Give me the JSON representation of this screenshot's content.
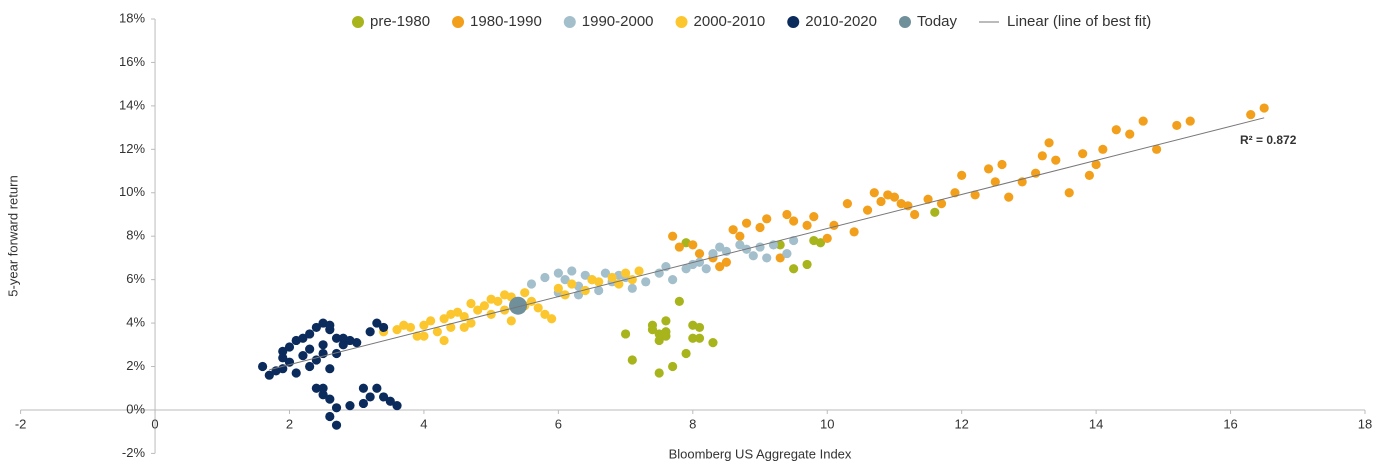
{
  "chart_data": {
    "type": "scatter",
    "x_label": "Bloomberg US Aggregate Index",
    "y_label": "5-year forward return",
    "annotation": "R² = 0.872",
    "xlim": [
      -2,
      18
    ],
    "xticks": [
      -2,
      0,
      2,
      4,
      6,
      8,
      10,
      12,
      14,
      16,
      18
    ],
    "ylim": [
      -2,
      18
    ],
    "yticks": [
      {
        "value": -2,
        "label": "-2%"
      },
      {
        "value": 0,
        "label": "0%"
      },
      {
        "value": 2,
        "label": "2%"
      },
      {
        "value": 4,
        "label": "4%"
      },
      {
        "value": 6,
        "label": "6%"
      },
      {
        "value": 8,
        "label": "8%"
      },
      {
        "value": 10,
        "label": "10%"
      },
      {
        "value": 12,
        "label": "12%"
      },
      {
        "value": 14,
        "label": "14%"
      },
      {
        "value": 16,
        "label": "16%"
      },
      {
        "value": 18,
        "label": "18%"
      }
    ],
    "series": [
      {
        "name": "pre-1980",
        "color": "#a8b41c",
        "x": [
          7.0,
          7.1,
          7.4,
          7.5,
          7.5,
          7.6,
          7.6,
          7.5,
          7.7,
          7.8,
          7.9,
          8.0,
          8.0,
          8.1,
          8.1,
          8.3,
          7.4,
          7.6,
          9.3,
          9.5,
          9.7,
          9.8,
          9.9,
          11.6,
          7.9
        ],
        "values": [
          3.5,
          2.3,
          3.9,
          3.5,
          3.2,
          4.1,
          3.6,
          1.7,
          2.0,
          5.0,
          2.6,
          3.9,
          3.3,
          3.8,
          3.3,
          3.1,
          3.7,
          3.4,
          7.6,
          6.5,
          6.7,
          7.8,
          7.7,
          9.1,
          7.7
        ]
      },
      {
        "name": "1980-1990",
        "color": "#f29f1c",
        "x": [
          7.7,
          7.8,
          8.0,
          8.1,
          8.3,
          8.4,
          8.5,
          8.6,
          8.7,
          8.8,
          9.0,
          9.1,
          9.3,
          9.4,
          9.5,
          9.7,
          9.8,
          10.0,
          10.1,
          10.3,
          10.4,
          10.6,
          10.7,
          10.8,
          11.0,
          11.2,
          11.3,
          11.5,
          11.7,
          11.9,
          12.0,
          12.2,
          12.4,
          12.5,
          12.7,
          12.9,
          13.1,
          13.2,
          13.4,
          13.6,
          13.8,
          14.0,
          14.1,
          14.3,
          14.5,
          14.7,
          14.9,
          15.2,
          15.4,
          16.3,
          16.5,
          13.3,
          13.9,
          12.6,
          11.1,
          10.9
        ],
        "values": [
          8.0,
          7.5,
          7.6,
          7.2,
          7.0,
          6.6,
          6.8,
          8.3,
          8.0,
          8.6,
          8.4,
          8.8,
          7.0,
          9.0,
          8.7,
          8.5,
          8.9,
          7.9,
          8.5,
          9.5,
          8.2,
          9.2,
          10.0,
          9.6,
          9.8,
          9.4,
          9.0,
          9.7,
          9.5,
          10.0,
          10.8,
          9.9,
          11.1,
          10.5,
          9.8,
          10.5,
          10.9,
          11.7,
          11.5,
          10.0,
          11.8,
          11.3,
          12.0,
          12.9,
          12.7,
          13.3,
          12.0,
          13.1,
          13.3,
          13.6,
          13.9,
          12.3,
          10.8,
          11.3,
          9.5,
          9.9
        ]
      },
      {
        "name": "1990-2000",
        "color": "#a3bfcc",
        "x": [
          5.6,
          5.8,
          6.0,
          6.1,
          6.2,
          6.3,
          6.4,
          6.5,
          6.6,
          6.7,
          6.8,
          6.9,
          7.1,
          7.3,
          7.5,
          7.7,
          7.9,
          8.1,
          8.2,
          8.3,
          8.4,
          8.5,
          8.7,
          8.9,
          9.0,
          9.2,
          9.4,
          9.5,
          6.0,
          6.3,
          7.6,
          8.0,
          8.8,
          9.1,
          7.0
        ],
        "values": [
          5.8,
          6.1,
          6.3,
          6.0,
          6.4,
          5.7,
          6.2,
          6.0,
          5.5,
          6.3,
          5.9,
          6.2,
          5.6,
          5.9,
          6.3,
          6.0,
          6.5,
          6.8,
          6.5,
          7.2,
          7.5,
          7.3,
          7.6,
          7.1,
          7.5,
          7.6,
          7.2,
          7.8,
          5.4,
          5.3,
          6.6,
          6.7,
          7.4,
          7.0,
          6.1
        ]
      },
      {
        "name": "2000-2010",
        "color": "#fcc72e",
        "x": [
          3.4,
          3.6,
          3.8,
          3.9,
          4.0,
          4.1,
          4.2,
          4.3,
          4.4,
          4.5,
          4.6,
          4.7,
          4.8,
          4.9,
          5.0,
          5.1,
          5.2,
          5.3,
          5.4,
          5.5,
          5.6,
          5.7,
          5.8,
          6.0,
          6.1,
          6.2,
          6.4,
          6.5,
          6.6,
          6.8,
          6.9,
          7.0,
          7.1,
          7.2,
          4.0,
          4.3,
          4.6,
          5.3,
          5.9,
          4.7,
          5.2,
          5.5,
          3.7,
          4.4,
          5.0
        ],
        "values": [
          3.6,
          3.7,
          3.8,
          3.4,
          3.9,
          4.1,
          3.6,
          4.2,
          3.8,
          4.5,
          4.3,
          4.0,
          4.6,
          4.8,
          4.4,
          5.0,
          4.6,
          5.2,
          4.9,
          5.4,
          5.0,
          4.7,
          4.4,
          5.6,
          5.3,
          5.8,
          5.5,
          6.0,
          5.9,
          6.1,
          5.8,
          6.3,
          6.0,
          6.4,
          3.4,
          3.2,
          3.8,
          4.1,
          4.2,
          4.9,
          5.3,
          4.8,
          3.9,
          4.4,
          5.1
        ]
      },
      {
        "name": "2010-2020",
        "color": "#0b2b5c",
        "x": [
          1.6,
          1.7,
          1.8,
          1.9,
          1.9,
          2.0,
          2.0,
          2.1,
          2.1,
          2.2,
          2.2,
          2.3,
          2.3,
          2.3,
          2.4,
          2.4,
          2.5,
          2.5,
          2.5,
          2.6,
          2.6,
          2.7,
          2.7,
          2.8,
          2.9,
          3.0,
          3.2,
          3.3,
          3.4,
          2.4,
          2.5,
          2.5,
          2.6,
          2.6,
          2.7,
          2.7,
          2.9,
          3.1,
          3.1,
          3.2,
          3.3,
          3.4,
          3.5,
          3.6,
          2.8,
          1.9,
          2.6
        ],
        "values": [
          2.0,
          1.6,
          1.8,
          2.7,
          1.9,
          2.9,
          2.2,
          3.2,
          1.7,
          2.5,
          3.3,
          2.0,
          2.8,
          3.5,
          3.8,
          2.3,
          4.0,
          3.0,
          2.6,
          3.7,
          1.9,
          3.3,
          2.6,
          3.0,
          3.2,
          3.1,
          3.6,
          4.0,
          3.8,
          1.0,
          0.7,
          1.0,
          0.5,
          -0.3,
          -0.7,
          0.1,
          0.2,
          0.3,
          1.0,
          0.6,
          1.0,
          0.6,
          0.4,
          0.2,
          3.3,
          2.4,
          3.9
        ]
      },
      {
        "name": "Today",
        "color": "#6f909b",
        "x": [
          5.4
        ],
        "values": [
          4.8
        ]
      },
      {
        "name": "Linear (line of best fit)",
        "color": "#777777",
        "type": "line",
        "x": [
          1.7,
          16.5
        ],
        "values": [
          1.85,
          13.45
        ]
      }
    ]
  }
}
